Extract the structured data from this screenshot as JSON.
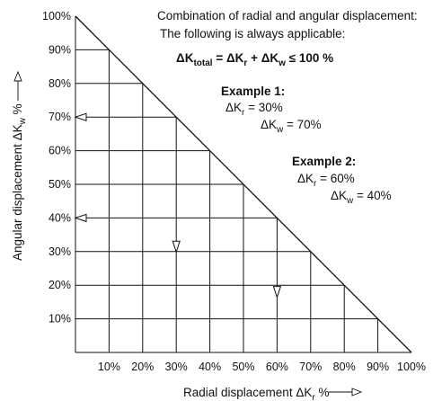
{
  "chart_data": {
    "type": "area",
    "description_lines": [
      "Combination of radial and angular displacement:",
      "The following is always applicable:"
    ],
    "formula": "ΔKtotal = ΔKr + ΔKw ≤ 100 %",
    "xlabel": "Radial displacement ΔKr %",
    "ylabel": "Angular displacement ΔKw %",
    "xlim": [
      0,
      100
    ],
    "ylim": [
      0,
      100
    ],
    "x_ticks": [
      "10%",
      "20%",
      "30%",
      "40%",
      "50%",
      "60%",
      "70%",
      "80%",
      "90%",
      "100%"
    ],
    "y_ticks": [
      "10%",
      "20%",
      "30%",
      "40%",
      "50%",
      "60%",
      "70%",
      "80%",
      "90%",
      "100%"
    ],
    "grid": true,
    "boundary": {
      "x": [
        0,
        100
      ],
      "y": [
        100,
        0
      ]
    },
    "examples": [
      {
        "title": "Example 1:",
        "radial": "ΔKr = 30%",
        "angular": "ΔKw = 70%",
        "x": 30,
        "y": 70
      },
      {
        "title": "Example 2:",
        "radial": "ΔKr = 60%",
        "angular": "ΔKw = 40%",
        "x": 60,
        "y": 40
      }
    ]
  }
}
